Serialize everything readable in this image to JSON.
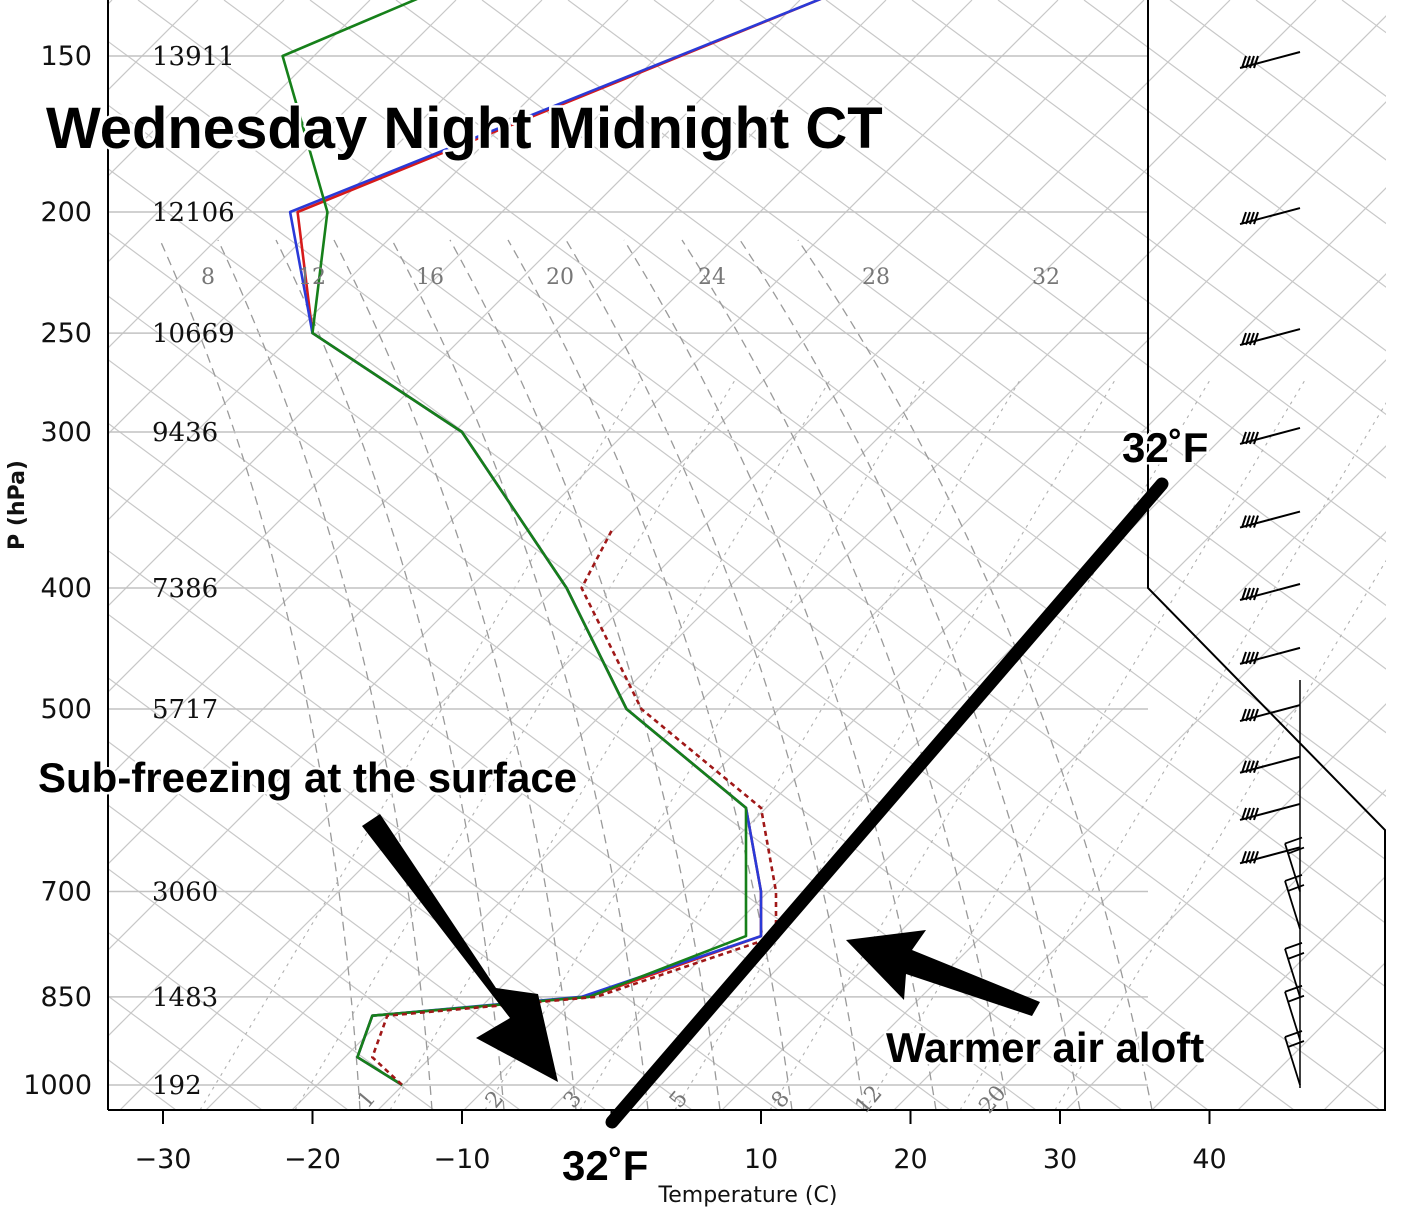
{
  "chart_data": {
    "type": "skew-t",
    "title": "",
    "ylabel": "P (hPa)",
    "xlabel": "Temperature (C)",
    "x_ticks": [
      -30,
      -20,
      -10,
      0,
      10,
      20,
      30,
      40
    ],
    "x_tick_labels": [
      "−30",
      "−20",
      "−10",
      "",
      "10",
      "20",
      "30",
      "40"
    ],
    "pressure_levels": [
      {
        "p": 150,
        "label": "150",
        "height": "13911"
      },
      {
        "p": 200,
        "label": "200",
        "height": "12106"
      },
      {
        "p": 250,
        "label": "250",
        "height": "10669"
      },
      {
        "p": 300,
        "label": "300",
        "height": "9436"
      },
      {
        "p": 400,
        "label": "400",
        "height": "7386"
      },
      {
        "p": 500,
        "label": "500",
        "height": "5717"
      },
      {
        "p": 700,
        "label": "700",
        "height": "3060"
      },
      {
        "p": 850,
        "label": "850",
        "height": "1483"
      },
      {
        "p": 1000,
        "label": "1000",
        "height": "192"
      }
    ],
    "mixing_ratio_labels": [
      "8",
      "12",
      "16",
      "20",
      "24",
      "28",
      "32"
    ],
    "bottom_mixing_labels": [
      "1",
      "2",
      "3",
      "5",
      "8",
      "12",
      "20"
    ],
    "series": [
      {
        "color": "#d61a1a",
        "style": "solid",
        "points": [
          [
            135,
            14
          ],
          [
            200,
            -21
          ],
          [
            250,
            -20
          ],
          [
            300,
            -10
          ],
          [
            400,
            -3
          ],
          [
            500,
            1
          ],
          [
            600,
            9
          ],
          [
            700,
            10
          ],
          [
            760,
            10
          ],
          [
            850,
            -1.5
          ],
          [
            880,
            -16
          ],
          [
            950,
            -17
          ],
          [
            1000,
            -14
          ]
        ]
      },
      {
        "color": "#2a3ad8",
        "style": "solid",
        "points": [
          [
            135,
            14
          ],
          [
            200,
            -21.5
          ],
          [
            250,
            -20
          ],
          [
            300,
            -10
          ],
          [
            400,
            -3
          ],
          [
            500,
            1
          ],
          [
            600,
            9
          ],
          [
            700,
            10
          ],
          [
            760,
            10
          ],
          [
            850,
            -2
          ],
          [
            880,
            -16
          ],
          [
            950,
            -17
          ],
          [
            1000,
            -14
          ]
        ]
      },
      {
        "color": "#16801a",
        "style": "solid",
        "points": [
          [
            135,
            -13
          ],
          [
            150,
            -22
          ],
          [
            200,
            -19
          ],
          [
            250,
            -20
          ],
          [
            300,
            -10
          ],
          [
            400,
            -3
          ],
          [
            500,
            1
          ],
          [
            600,
            9
          ],
          [
            700,
            9
          ],
          [
            760,
            9
          ],
          [
            850,
            -1.5
          ],
          [
            880,
            -16
          ],
          [
            950,
            -17
          ],
          [
            1000,
            -14
          ]
        ]
      },
      {
        "color": "#a01818",
        "style": "dotted",
        "points": [
          [
            360,
            0
          ],
          [
            400,
            -2
          ],
          [
            500,
            2
          ],
          [
            600,
            10
          ],
          [
            700,
            11
          ],
          [
            760,
            11
          ],
          [
            850,
            -1
          ],
          [
            880,
            -15
          ],
          [
            950,
            -16
          ],
          [
            1000,
            -14
          ]
        ]
      }
    ],
    "wind_barbs_levels": [
      150,
      200,
      250,
      300,
      350,
      400,
      450,
      500,
      550,
      600,
      650,
      700,
      750,
      850,
      920,
      1000
    ]
  },
  "annotations": {
    "title": "Wednesday Night Midnight CT",
    "surface_note": "Sub-freezing at the surface",
    "warm_note": "Warmer air aloft",
    "freezing_top": "32˚F",
    "freezing_bottom": "32˚F"
  },
  "colors": {
    "temperature": "#d61a1a",
    "virtual_temperature": "#2a3ad8",
    "dewpoint": "#16801a",
    "wet_bulb": "#a01818",
    "grid": "#c8c8c8"
  }
}
